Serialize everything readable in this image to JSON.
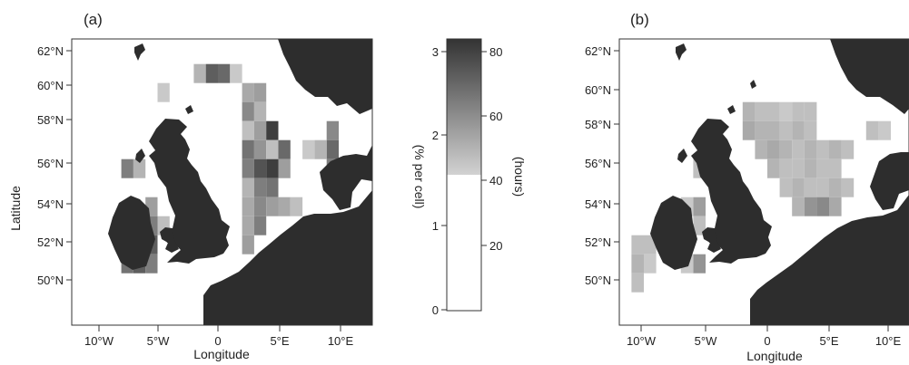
{
  "panel_a": {
    "label": "(a)",
    "xlabel": "Longitude",
    "ylabel": "Latitude",
    "x_ticks": [
      "10°W",
      "5°W",
      "0",
      "5°E",
      "10°E"
    ],
    "y_ticks": [
      "62°N",
      "60°N",
      "58°N",
      "56°N",
      "54°N",
      "52°N",
      "50°N"
    ],
    "cells": [
      {
        "lon": -1.5,
        "lat": 60.8,
        "v": 1.8
      },
      {
        "lon": -0.5,
        "lat": 60.8,
        "v": 2.6
      },
      {
        "lon": 0.5,
        "lat": 60.8,
        "v": 2.5
      },
      {
        "lon": 1.5,
        "lat": 60.8,
        "v": 1.6
      },
      {
        "lon": 2.5,
        "lat": 59.8,
        "v": 1.9
      },
      {
        "lon": 3.5,
        "lat": 59.8,
        "v": 2.0
      },
      {
        "lon": 2.5,
        "lat": 58.8,
        "v": 2.2
      },
      {
        "lon": 3.5,
        "lat": 58.8,
        "v": 1.8
      },
      {
        "lon": 2.5,
        "lat": 57.8,
        "v": 1.7
      },
      {
        "lon": 3.5,
        "lat": 57.8,
        "v": 2.0
      },
      {
        "lon": 4.5,
        "lat": 57.8,
        "v": 2.9
      },
      {
        "lon": 2.5,
        "lat": 56.8,
        "v": 2.4
      },
      {
        "lon": 3.5,
        "lat": 56.8,
        "v": 2.1
      },
      {
        "lon": 4.5,
        "lat": 56.8,
        "v": 1.7
      },
      {
        "lon": 5.5,
        "lat": 56.8,
        "v": 2.5
      },
      {
        "lon": 2.5,
        "lat": 55.8,
        "v": 2.3
      },
      {
        "lon": 3.5,
        "lat": 55.8,
        "v": 2.7
      },
      {
        "lon": 4.5,
        "lat": 55.8,
        "v": 2.9
      },
      {
        "lon": 5.5,
        "lat": 55.8,
        "v": 2.0
      },
      {
        "lon": 2.5,
        "lat": 54.8,
        "v": 1.8
      },
      {
        "lon": 3.5,
        "lat": 54.8,
        "v": 2.3
      },
      {
        "lon": 4.5,
        "lat": 54.8,
        "v": 2.4
      },
      {
        "lon": 2.5,
        "lat": 53.8,
        "v": 1.9
      },
      {
        "lon": 3.5,
        "lat": 53.8,
        "v": 2.2
      },
      {
        "lon": 4.5,
        "lat": 53.8,
        "v": 2.0
      },
      {
        "lon": 5.5,
        "lat": 53.8,
        "v": 1.9
      },
      {
        "lon": 6.5,
        "lat": 53.8,
        "v": 1.7
      },
      {
        "lon": 2.5,
        "lat": 52.8,
        "v": 1.9
      },
      {
        "lon": 3.5,
        "lat": 52.8,
        "v": 2.3
      },
      {
        "lon": 2.5,
        "lat": 51.8,
        "v": 2.0
      },
      {
        "lon": 9.5,
        "lat": 57.8,
        "v": 2.2
      },
      {
        "lon": 9.5,
        "lat": 56.8,
        "v": 2.5
      },
      {
        "lon": 9.5,
        "lat": 55.8,
        "v": 2.3
      },
      {
        "lon": 8.5,
        "lat": 56.8,
        "v": 1.8
      },
      {
        "lon": 7.5,
        "lat": 56.8,
        "v": 1.6
      },
      {
        "lon": -7.5,
        "lat": 55.8,
        "v": 2.3
      },
      {
        "lon": -6.5,
        "lat": 55.8,
        "v": 1.8
      },
      {
        "lon": -5.5,
        "lat": 53.8,
        "v": 2.0
      },
      {
        "lon": -5.5,
        "lat": 52.8,
        "v": 2.3
      },
      {
        "lon": -5.5,
        "lat": 51.8,
        "v": 2.6
      },
      {
        "lon": -6.5,
        "lat": 51.8,
        "v": 2.5
      },
      {
        "lon": -7.5,
        "lat": 51.8,
        "v": 1.6
      },
      {
        "lon": -6.5,
        "lat": 50.8,
        "v": 2.6
      },
      {
        "lon": -7.5,
        "lat": 50.8,
        "v": 2.4
      },
      {
        "lon": -5.5,
        "lat": 50.8,
        "v": 2.3
      },
      {
        "lon": -4.5,
        "lat": 59.8,
        "v": 1.6
      },
      {
        "lon": -4.5,
        "lat": 52.8,
        "v": 1.7
      }
    ]
  },
  "colorbar": {
    "left_label": "(% per cell)",
    "right_label": "(hours)",
    "left_ticks": [
      "3",
      "2",
      "1",
      "0"
    ],
    "right_ticks": [
      "80",
      "60",
      "40",
      "20"
    ],
    "range": [
      0,
      3
    ],
    "hours_range": [
      0,
      84
    ],
    "white_below": 1.5
  },
  "panel_b": {
    "label": "(b)",
    "xlabel": "Longitude",
    "x_ticks": [
      "10°W",
      "5°W",
      "0",
      "5°E",
      "10°E"
    ],
    "y_ticks": [
      "62°N",
      "60°N",
      "58°N",
      "56°N",
      "54°N",
      "52°N",
      "50°N"
    ],
    "cells": [
      {
        "lon": -1.5,
        "lat": 58.8,
        "v": 1.8
      },
      {
        "lon": -0.5,
        "lat": 58.8,
        "v": 1.7
      },
      {
        "lon": 0.5,
        "lat": 58.8,
        "v": 1.7
      },
      {
        "lon": 1.5,
        "lat": 58.8,
        "v": 1.6
      },
      {
        "lon": 2.5,
        "lat": 58.8,
        "v": 1.7
      },
      {
        "lon": 3.5,
        "lat": 58.8,
        "v": 1.7
      },
      {
        "lon": -1.5,
        "lat": 57.8,
        "v": 1.9
      },
      {
        "lon": -0.5,
        "lat": 57.8,
        "v": 1.8
      },
      {
        "lon": 0.5,
        "lat": 57.8,
        "v": 1.8
      },
      {
        "lon": 1.5,
        "lat": 57.8,
        "v": 1.7
      },
      {
        "lon": 2.5,
        "lat": 57.8,
        "v": 1.8
      },
      {
        "lon": 3.5,
        "lat": 57.8,
        "v": 1.7
      },
      {
        "lon": -0.5,
        "lat": 56.8,
        "v": 1.8
      },
      {
        "lon": 0.5,
        "lat": 56.8,
        "v": 1.9
      },
      {
        "lon": 1.5,
        "lat": 56.8,
        "v": 1.8
      },
      {
        "lon": 2.5,
        "lat": 56.8,
        "v": 1.7
      },
      {
        "lon": 3.5,
        "lat": 56.8,
        "v": 1.8
      },
      {
        "lon": 4.5,
        "lat": 56.8,
        "v": 1.7
      },
      {
        "lon": 5.5,
        "lat": 56.8,
        "v": 1.8
      },
      {
        "lon": 6.5,
        "lat": 56.8,
        "v": 1.7
      },
      {
        "lon": 0.5,
        "lat": 55.8,
        "v": 1.8
      },
      {
        "lon": 1.5,
        "lat": 55.8,
        "v": 1.7
      },
      {
        "lon": 2.5,
        "lat": 55.8,
        "v": 1.7
      },
      {
        "lon": 3.5,
        "lat": 55.8,
        "v": 1.8
      },
      {
        "lon": 4.5,
        "lat": 55.8,
        "v": 1.7
      },
      {
        "lon": 5.5,
        "lat": 55.8,
        "v": 1.7
      },
      {
        "lon": 1.5,
        "lat": 54.8,
        "v": 1.7
      },
      {
        "lon": 2.5,
        "lat": 54.8,
        "v": 1.8
      },
      {
        "lon": 3.5,
        "lat": 54.8,
        "v": 1.7
      },
      {
        "lon": 4.5,
        "lat": 54.8,
        "v": 1.7
      },
      {
        "lon": 5.5,
        "lat": 54.8,
        "v": 1.8
      },
      {
        "lon": 6.5,
        "lat": 54.8,
        "v": 1.7
      },
      {
        "lon": 2.5,
        "lat": 53.8,
        "v": 1.8
      },
      {
        "lon": 3.5,
        "lat": 53.8,
        "v": 2.1
      },
      {
        "lon": 4.5,
        "lat": 53.8,
        "v": 2.2
      },
      {
        "lon": 5.5,
        "lat": 53.8,
        "v": 1.9
      },
      {
        "lon": -9.5,
        "lat": 51.8,
        "v": 1.7
      },
      {
        "lon": -10.5,
        "lat": 51.8,
        "v": 1.7
      },
      {
        "lon": -10.5,
        "lat": 50.8,
        "v": 1.8
      },
      {
        "lon": -10.5,
        "lat": 49.8,
        "v": 1.7
      },
      {
        "lon": -9.5,
        "lat": 50.8,
        "v": 1.6
      },
      {
        "lon": -5.5,
        "lat": 53.8,
        "v": 2.0
      },
      {
        "lon": -6.5,
        "lat": 53.8,
        "v": 1.6
      },
      {
        "lon": -5.5,
        "lat": 52.8,
        "v": 1.7
      },
      {
        "lon": -5.5,
        "lat": 50.8,
        "v": 2.1
      },
      {
        "lon": -6.5,
        "lat": 50.8,
        "v": 1.6
      },
      {
        "lon": -4.5,
        "lat": 55.8,
        "v": 1.6
      },
      {
        "lon": -5.5,
        "lat": 55.8,
        "v": 1.7
      },
      {
        "lon": 8.5,
        "lat": 57.8,
        "v": 1.7
      },
      {
        "lon": 9.5,
        "lat": 57.8,
        "v": 1.6
      }
    ]
  }
}
